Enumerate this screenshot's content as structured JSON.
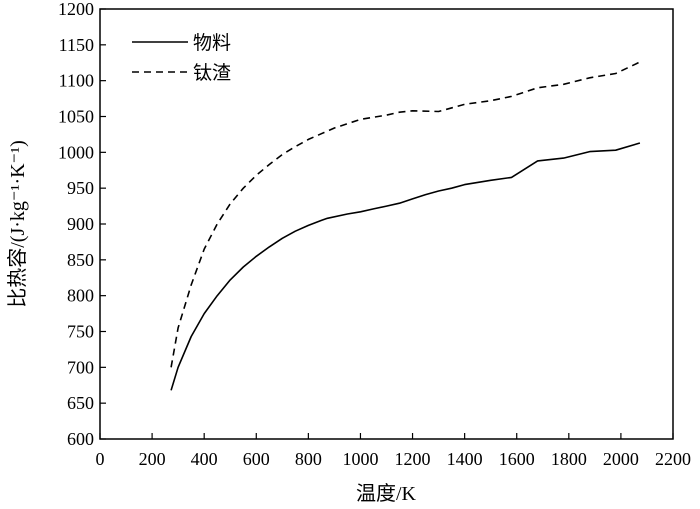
{
  "chart_data": {
    "type": "line",
    "xlabel": "温度/K",
    "ylabel": "比热容/(J·kg⁻¹·K⁻¹)",
    "xlim": [
      0,
      2200
    ],
    "ylim": [
      600,
      1200
    ],
    "x_ticks": [
      0,
      200,
      400,
      600,
      800,
      1000,
      1200,
      1400,
      1600,
      1800,
      2000,
      2200
    ],
    "y_ticks": [
      600,
      650,
      700,
      750,
      800,
      850,
      900,
      950,
      1000,
      1050,
      1100,
      1150,
      1200
    ],
    "grid": false,
    "legend": "top-left",
    "series": [
      {
        "name": "物料",
        "style": "solid",
        "color": "#000000",
        "points": [
          [
            273,
            668
          ],
          [
            300,
            700
          ],
          [
            350,
            743
          ],
          [
            400,
            775
          ],
          [
            450,
            800
          ],
          [
            500,
            822
          ],
          [
            550,
            840
          ],
          [
            600,
            855
          ],
          [
            650,
            868
          ],
          [
            700,
            880
          ],
          [
            750,
            890
          ],
          [
            800,
            898
          ],
          [
            850,
            905
          ],
          [
            873,
            908
          ],
          [
            950,
            914
          ],
          [
            1000,
            917
          ],
          [
            1050,
            921
          ],
          [
            1100,
            925
          ],
          [
            1150,
            929
          ],
          [
            1200,
            935
          ],
          [
            1250,
            941
          ],
          [
            1300,
            946
          ],
          [
            1350,
            950
          ],
          [
            1400,
            955
          ],
          [
            1450,
            958
          ],
          [
            1500,
            961
          ],
          [
            1580,
            965
          ],
          [
            1680,
            988
          ],
          [
            1780,
            992
          ],
          [
            1880,
            1001
          ],
          [
            1980,
            1003
          ],
          [
            2073,
            1013
          ]
        ]
      },
      {
        "name": "钛渣",
        "style": "dashed",
        "color": "#000000",
        "points": [
          [
            273,
            700
          ],
          [
            300,
            755
          ],
          [
            350,
            815
          ],
          [
            400,
            865
          ],
          [
            450,
            900
          ],
          [
            500,
            928
          ],
          [
            550,
            950
          ],
          [
            600,
            968
          ],
          [
            650,
            983
          ],
          [
            700,
            997
          ],
          [
            750,
            1008
          ],
          [
            800,
            1018
          ],
          [
            850,
            1026
          ],
          [
            900,
            1034
          ],
          [
            950,
            1040
          ],
          [
            1000,
            1046
          ],
          [
            1100,
            1052
          ],
          [
            1150,
            1056
          ],
          [
            1200,
            1058
          ],
          [
            1300,
            1057
          ],
          [
            1400,
            1067
          ],
          [
            1500,
            1072
          ],
          [
            1580,
            1078
          ],
          [
            1680,
            1090
          ],
          [
            1780,
            1095
          ],
          [
            1880,
            1104
          ],
          [
            1980,
            1110
          ],
          [
            2073,
            1126
          ]
        ]
      }
    ]
  }
}
